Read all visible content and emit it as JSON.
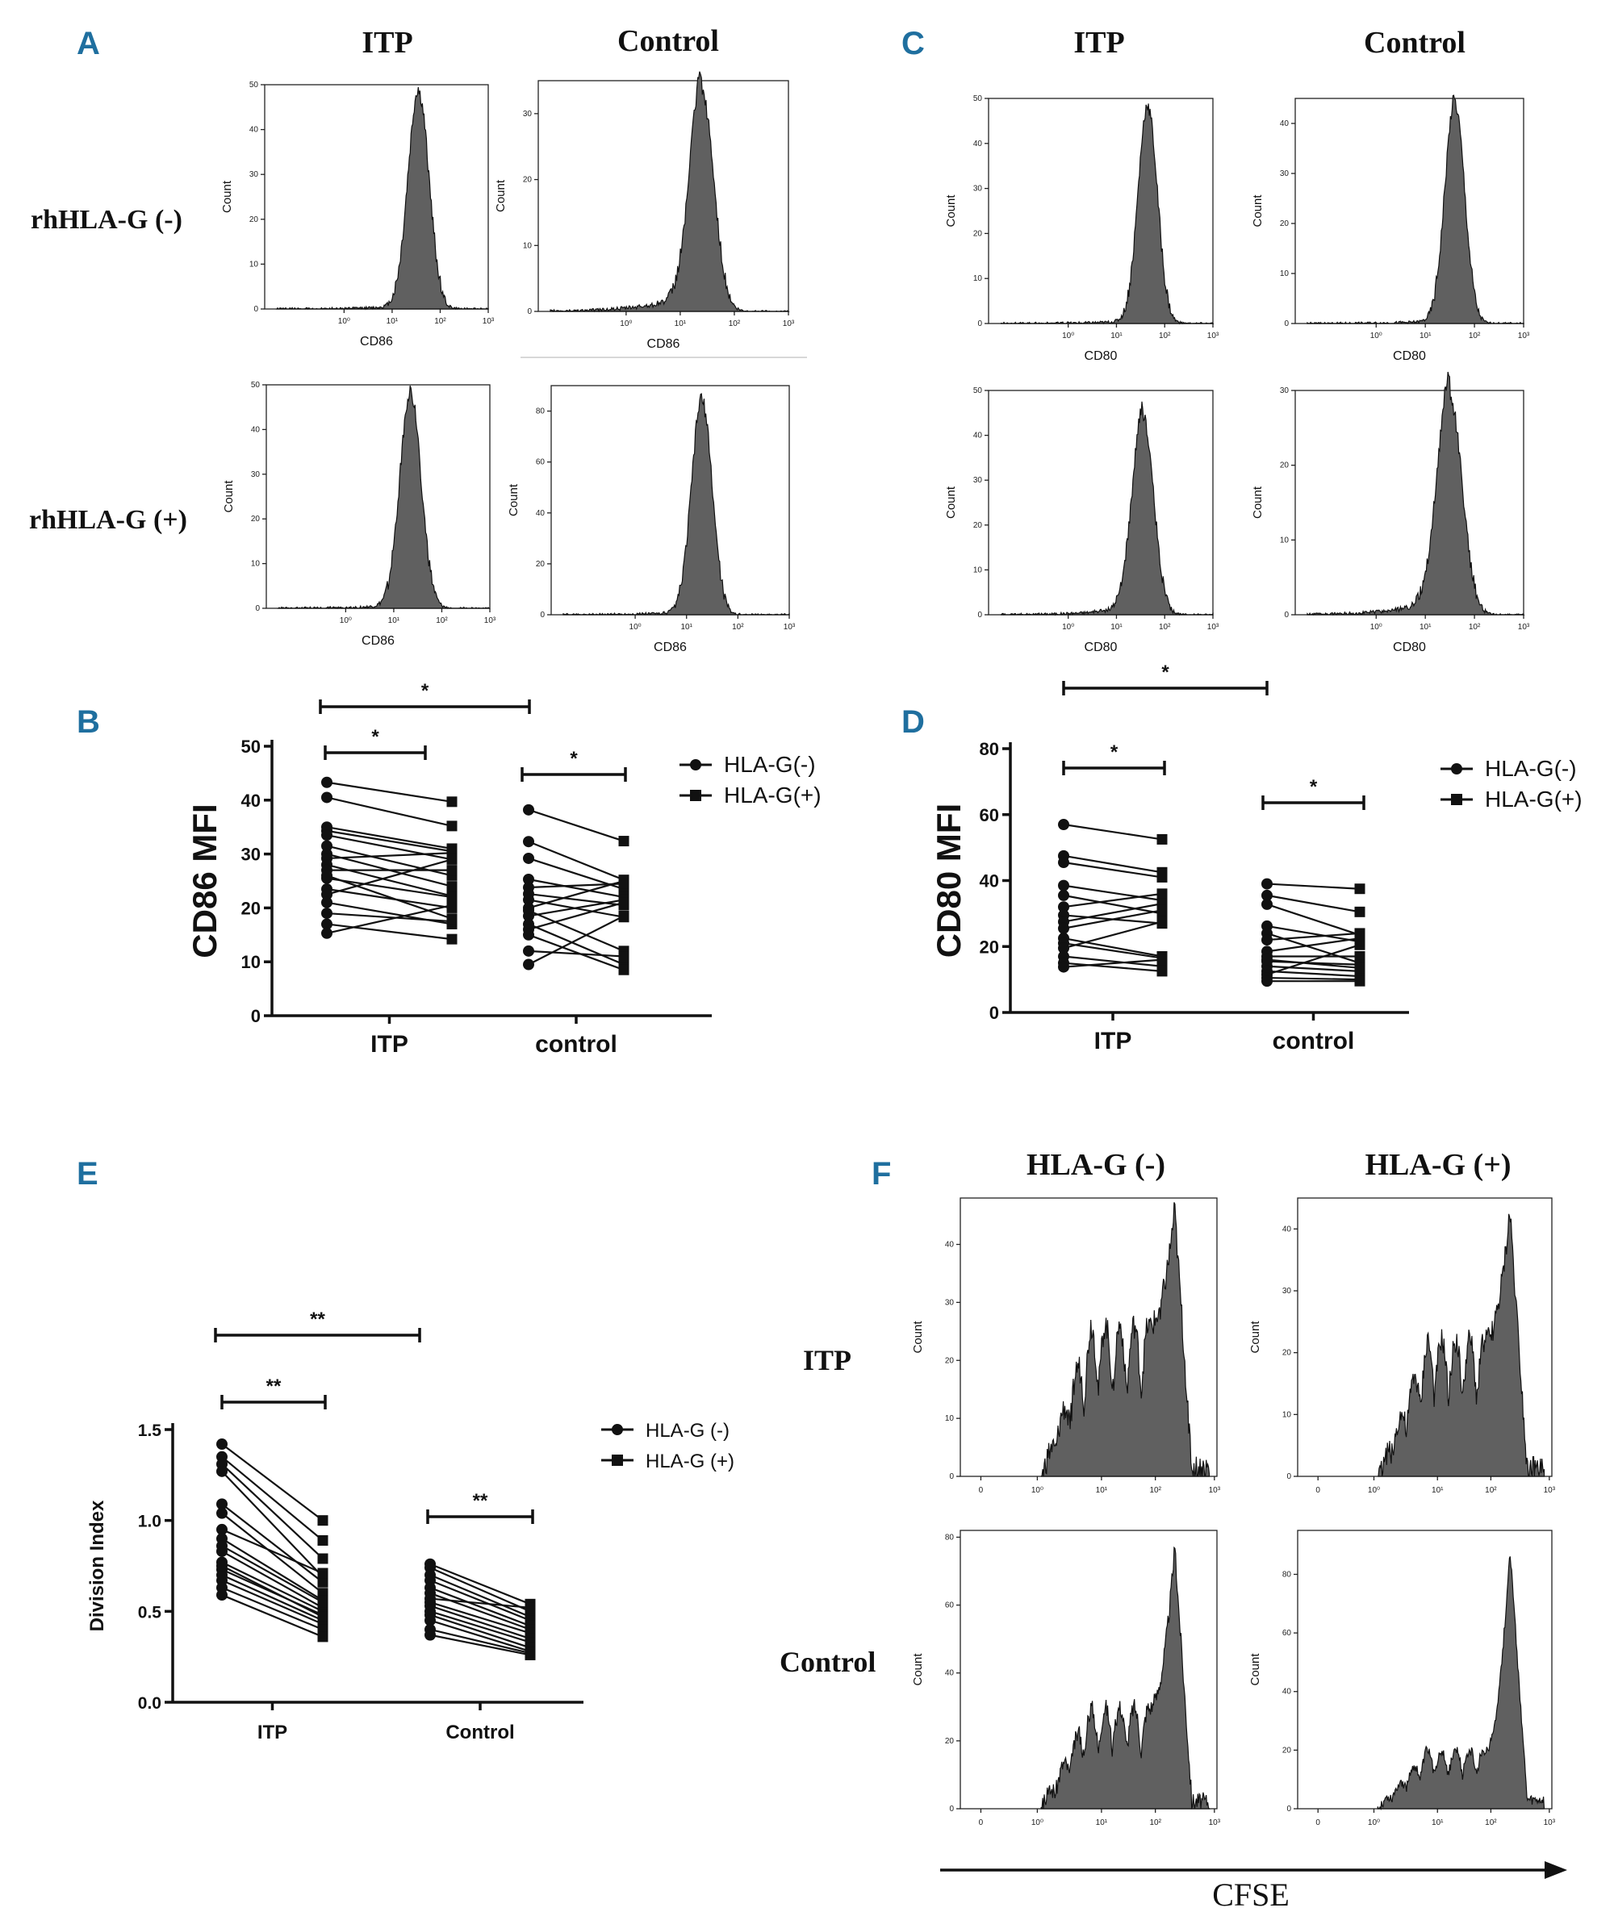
{
  "panels": {
    "A": "A",
    "B": "B",
    "C": "C",
    "D": "D",
    "E": "E",
    "F": "F"
  },
  "labels": {
    "itp": "ITP",
    "control": "Control",
    "rh_neg": "rhHLA-G (-)",
    "rh_pos": "rhHLA-G (+)",
    "hlag_neg": "HLA-G (-)",
    "hlag_pos": "HLA-G (+)",
    "count": "Count",
    "cd86": "CD86",
    "cd80": "CD80",
    "cfse": "CFSE",
    "star": "*",
    "star2": "**"
  },
  "log_ticks": [
    "10⁰",
    "10¹",
    "10²",
    "10³"
  ],
  "zero_tick": "0",
  "colors": {
    "panel_label": "#1f6f9f",
    "fill": "#606060",
    "line": "#111111"
  },
  "histograms": {
    "A_itp_neg": {
      "ymax": 50,
      "yticks": [
        0,
        10,
        20,
        30,
        40,
        50
      ],
      "peak_decade": 1.55,
      "width": 0.22,
      "height": 48,
      "tail": "low"
    },
    "A_ctl_neg": {
      "ymax": 35,
      "yticks": [
        0,
        10,
        20,
        30
      ],
      "peak_decade": 1.4,
      "width": 0.22,
      "height": 33,
      "tail": "long"
    },
    "A_itp_pos": {
      "ymax": 50,
      "yticks": [
        0,
        10,
        20,
        30,
        40,
        50
      ],
      "peak_decade": 1.35,
      "width": 0.22,
      "height": 48,
      "tail": "low"
    },
    "A_ctl_pos": {
      "ymax": 90,
      "yticks": [
        0,
        20,
        40,
        60,
        80
      ],
      "peak_decade": 1.3,
      "width": 0.2,
      "height": 84,
      "tail": "low"
    },
    "C_itp_neg": {
      "ymax": 50,
      "yticks": [
        0,
        10,
        20,
        30,
        40,
        50
      ],
      "peak_decade": 1.65,
      "width": 0.2,
      "height": 48,
      "tail": "low"
    },
    "C_ctl_neg": {
      "ymax": 45,
      "yticks": [
        0,
        10,
        20,
        30,
        40
      ],
      "peak_decade": 1.6,
      "width": 0.2,
      "height": 44,
      "tail": "low"
    },
    "C_itp_pos": {
      "ymax": 50,
      "yticks": [
        0,
        10,
        20,
        30,
        40,
        50
      ],
      "peak_decade": 1.55,
      "width": 0.22,
      "height": 44,
      "tail": "medium"
    },
    "C_ctl_pos": {
      "ymax": 30,
      "yticks": [
        0,
        10,
        20,
        30
      ],
      "peak_decade": 1.5,
      "width": 0.25,
      "height": 29,
      "tail": "long"
    }
  },
  "cfse": {
    "itp_neg": {
      "ymax": 48,
      "yticks": [
        0,
        10,
        20,
        30,
        40
      ],
      "peak": 46,
      "plateau": 26,
      "start": 0.1
    },
    "itp_pos": {
      "ymax": 45,
      "yticks": [
        0,
        10,
        20,
        30,
        40
      ],
      "peak": 43,
      "plateau": 22,
      "start": 0.15
    },
    "ctl_neg": {
      "ymax": 82,
      "yticks": [
        0,
        20,
        40,
        60,
        80
      ],
      "peak": 77,
      "plateau": 30,
      "start": 0.1
    },
    "ctl_pos": {
      "ymax": 95,
      "yticks": [
        0,
        20,
        40,
        60,
        80
      ],
      "peak": 89,
      "plateau": 20,
      "start": 0.1
    }
  },
  "chart_data": [
    {
      "type": "scatter",
      "panel": "B",
      "ylabel": "CD86 MFI",
      "ylim": [
        0,
        50
      ],
      "yticks": [
        0,
        10,
        20,
        30,
        40,
        50
      ],
      "categories": [
        "ITP",
        "control"
      ],
      "legend": [
        "HLA-G(-)",
        "HLA-G(+)"
      ],
      "significance": [
        "*",
        "*",
        "*"
      ],
      "ITP_pairs": [
        [
          43.3,
          39.7
        ],
        [
          40.5,
          35.2
        ],
        [
          35,
          31
        ],
        [
          34.3,
          30.5
        ],
        [
          33.5,
          29
        ],
        [
          31.5,
          26
        ],
        [
          30,
          24
        ],
        [
          29.2,
          30.2
        ],
        [
          28,
          22.2
        ],
        [
          27,
          27
        ],
        [
          25.5,
          22
        ],
        [
          23.5,
          20
        ],
        [
          22.5,
          29
        ],
        [
          21,
          17
        ],
        [
          19,
          17.5
        ],
        [
          17,
          14.2
        ],
        [
          15.3,
          20.5
        ],
        [
          26,
          18
        ]
      ],
      "control_pairs": [
        [
          38.2,
          32.4
        ],
        [
          32.3,
          25.2
        ],
        [
          29.2,
          23.5
        ],
        [
          25.3,
          22
        ],
        [
          23.8,
          24.5
        ],
        [
          22.6,
          20.5
        ],
        [
          21.5,
          18.3
        ],
        [
          19.5,
          12
        ],
        [
          18.5,
          21.5
        ],
        [
          17,
          9.5
        ],
        [
          16,
          21
        ],
        [
          15,
          8.5
        ],
        [
          12,
          11
        ],
        [
          9.5,
          18.5
        ],
        [
          20,
          25
        ]
      ]
    },
    {
      "type": "scatter",
      "panel": "D",
      "ylabel": "CD80 MFI",
      "ylim": [
        0,
        80
      ],
      "yticks": [
        0,
        20,
        40,
        60,
        80
      ],
      "categories": [
        "ITP",
        "control"
      ],
      "legend": [
        "HLA-G(-)",
        "HLA-G(+)"
      ],
      "significance": [
        "*",
        "*",
        "*"
      ],
      "ITP_pairs": [
        [
          57,
          52.5
        ],
        [
          47.5,
          42.5
        ],
        [
          45.5,
          41
        ],
        [
          38.5,
          34
        ],
        [
          35.5,
          30
        ],
        [
          32,
          36
        ],
        [
          29.5,
          27
        ],
        [
          27.5,
          33
        ],
        [
          25.5,
          31
        ],
        [
          22.5,
          17
        ],
        [
          21,
          16.5
        ],
        [
          19.5,
          27.5
        ],
        [
          17,
          14
        ],
        [
          15,
          12.5
        ],
        [
          13.8,
          16
        ]
      ],
      "control_pairs": [
        [
          39,
          37.5
        ],
        [
          35.5,
          30.5
        ],
        [
          32.8,
          23.5
        ],
        [
          26.2,
          21.5
        ],
        [
          24,
          15
        ],
        [
          22,
          24
        ],
        [
          18.5,
          22.5
        ],
        [
          17,
          17
        ],
        [
          15.5,
          14.5
        ],
        [
          14,
          12.5
        ],
        [
          12.5,
          11
        ],
        [
          11.5,
          20.5
        ],
        [
          10.5,
          10
        ],
        [
          9.5,
          9.5
        ],
        [
          16,
          13.5
        ]
      ]
    },
    {
      "type": "scatter",
      "panel": "E",
      "ylabel": "Division Index",
      "ylim": [
        0,
        1.5
      ],
      "yticks": [
        "0.0",
        "0.5",
        "1.0",
        "1.5"
      ],
      "categories": [
        "ITP",
        "Control"
      ],
      "legend": [
        "HLA-G (-)",
        "HLA-G (+)"
      ],
      "significance": [
        "**",
        "**",
        "**"
      ],
      "ITP_pairs": [
        [
          1.42,
          1.0
        ],
        [
          1.35,
          0.89
        ],
        [
          1.31,
          0.79
        ],
        [
          1.27,
          0.69
        ],
        [
          1.09,
          0.66
        ],
        [
          1.04,
          0.6
        ],
        [
          0.95,
          0.71
        ],
        [
          0.9,
          0.56
        ],
        [
          0.83,
          0.52
        ],
        [
          0.77,
          0.5
        ],
        [
          0.73,
          0.48
        ],
        [
          0.7,
          0.45
        ],
        [
          0.67,
          0.43
        ],
        [
          0.63,
          0.4
        ],
        [
          0.59,
          0.36
        ],
        [
          0.86,
          0.55
        ],
        [
          0.75,
          0.47
        ]
      ],
      "control_pairs": [
        [
          0.76,
          0.54
        ],
        [
          0.74,
          0.5
        ],
        [
          0.7,
          0.47
        ],
        [
          0.67,
          0.45
        ],
        [
          0.63,
          0.42
        ],
        [
          0.6,
          0.4
        ],
        [
          0.55,
          0.38
        ],
        [
          0.53,
          0.35
        ],
        [
          0.5,
          0.33
        ],
        [
          0.48,
          0.3
        ],
        [
          0.45,
          0.28
        ],
        [
          0.4,
          0.27
        ],
        [
          0.37,
          0.26
        ],
        [
          0.57,
          0.52
        ]
      ]
    }
  ]
}
